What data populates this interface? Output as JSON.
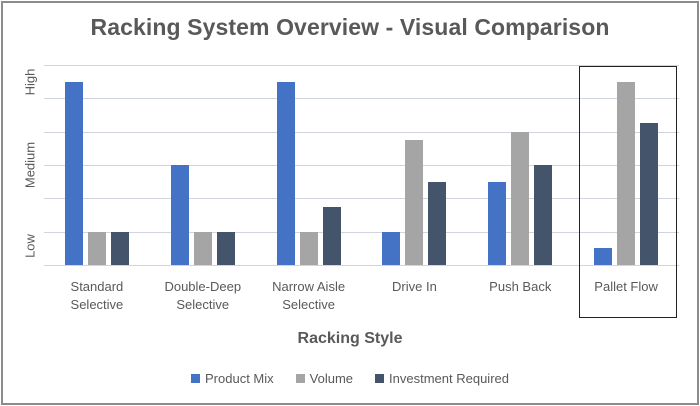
{
  "chart_data": {
    "type": "bar",
    "title": "Racking System Overview - Visual Comparison",
    "xlabel": "Racking Style",
    "ylabel": "",
    "ylim": [
      0,
      6
    ],
    "y_tick_labels": [
      {
        "label": "Low",
        "position": 0.5
      },
      {
        "label": "Medium",
        "position": 3
      },
      {
        "label": "High",
        "position": 5.5
      }
    ],
    "grid": true,
    "gridlines": [
      0,
      1,
      2,
      3,
      4,
      5,
      6
    ],
    "legend_position": "bottom",
    "categories": [
      "Standard\nSelective",
      "Double-Deep\nSelective",
      "Narrow Aisle\nSelective",
      "Drive In",
      "Push Back",
      "Pallet Flow"
    ],
    "series": [
      {
        "name": "Product Mix",
        "color": "#4472C4",
        "values": [
          5.5,
          3,
          5.5,
          1,
          2.5,
          0.5
        ]
      },
      {
        "name": "Volume",
        "color": "#A5A5A5",
        "values": [
          1,
          1,
          1,
          3.75,
          4,
          5.5
        ]
      },
      {
        "name": "Investment Required",
        "color": "#44546A",
        "values": [
          1,
          1,
          1.75,
          2.5,
          3,
          4.25
        ]
      }
    ],
    "annotations": [
      {
        "type": "highlight-box",
        "category": "Pallet Flow"
      }
    ]
  }
}
